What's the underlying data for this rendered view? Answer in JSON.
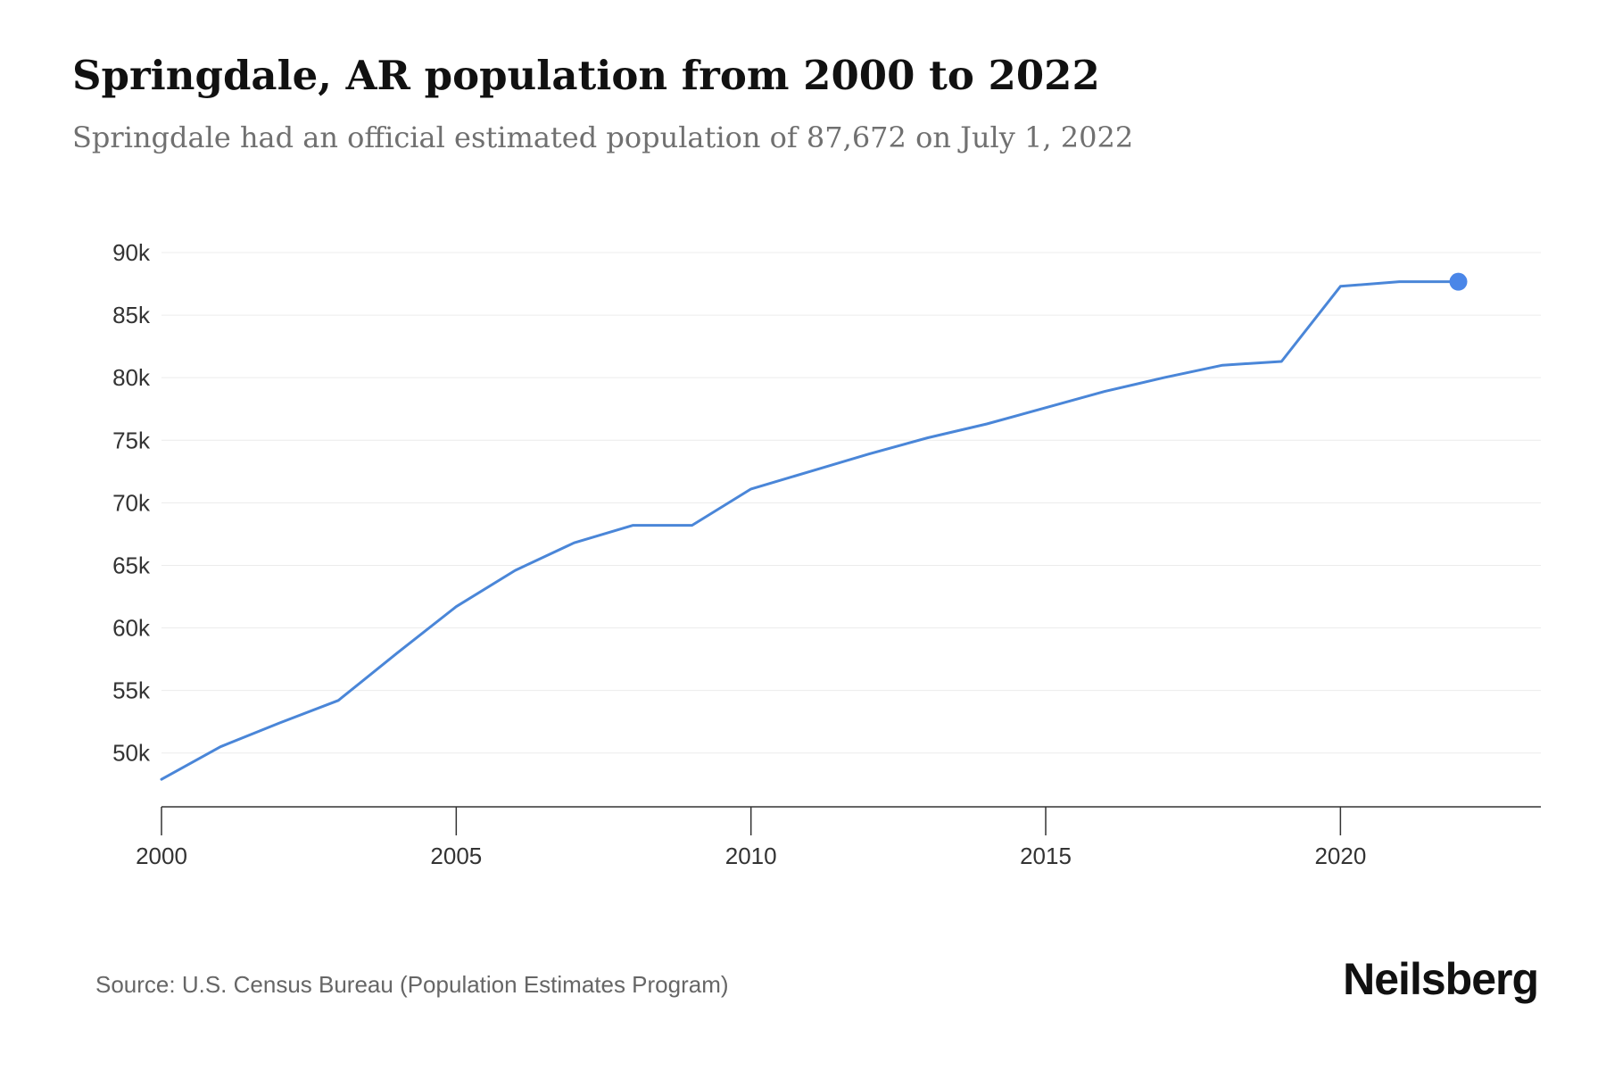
{
  "header": {
    "title": "Springdale, AR population from 2000 to 2022",
    "subtitle": "Springdale had an official estimated population of 87,672 on July 1, 2022"
  },
  "footer": {
    "source": "Source: U.S. Census Bureau (Population Estimates Program)",
    "brand": "Neilsberg"
  },
  "colors": {
    "line": "#4a86d8",
    "marker": "#4a86e8",
    "grid": "#ececec",
    "axis": "#333333"
  },
  "chart_data": {
    "type": "line",
    "title": "Springdale, AR population from 2000 to 2022",
    "subtitle": "Springdale had an official estimated population of 87,672 on July 1, 2022",
    "xlabel": "",
    "ylabel": "",
    "x": [
      2000,
      2001,
      2002,
      2003,
      2004,
      2005,
      2006,
      2007,
      2008,
      2009,
      2010,
      2011,
      2012,
      2013,
      2014,
      2015,
      2016,
      2017,
      2018,
      2019,
      2020,
      2021,
      2022
    ],
    "series": [
      {
        "name": "",
        "values": [
          47900,
          50500,
          52400,
          54200,
          58000,
          61700,
          64600,
          66800,
          68200,
          68200,
          71100,
          72500,
          73900,
          75200,
          76300,
          77600,
          78900,
          80000,
          81000,
          81300,
          87300,
          87672,
          87672
        ]
      }
    ],
    "xlim": [
      2000,
      2023.4
    ],
    "ylim": [
      45700,
      90000
    ],
    "yticks": [
      50000,
      55000,
      60000,
      65000,
      70000,
      75000,
      80000,
      85000,
      90000
    ],
    "ytick_labels": [
      "50k",
      "55k",
      "60k",
      "65k",
      "70k",
      "75k",
      "80k",
      "85k",
      "90k"
    ],
    "xticks": [
      2000,
      2005,
      2010,
      2015,
      2020
    ],
    "xtick_labels": [
      "2000",
      "2005",
      "2010",
      "2015",
      "2020"
    ],
    "grid": true,
    "legend": "none",
    "highlight": {
      "x": 2022,
      "y": 87672
    }
  }
}
